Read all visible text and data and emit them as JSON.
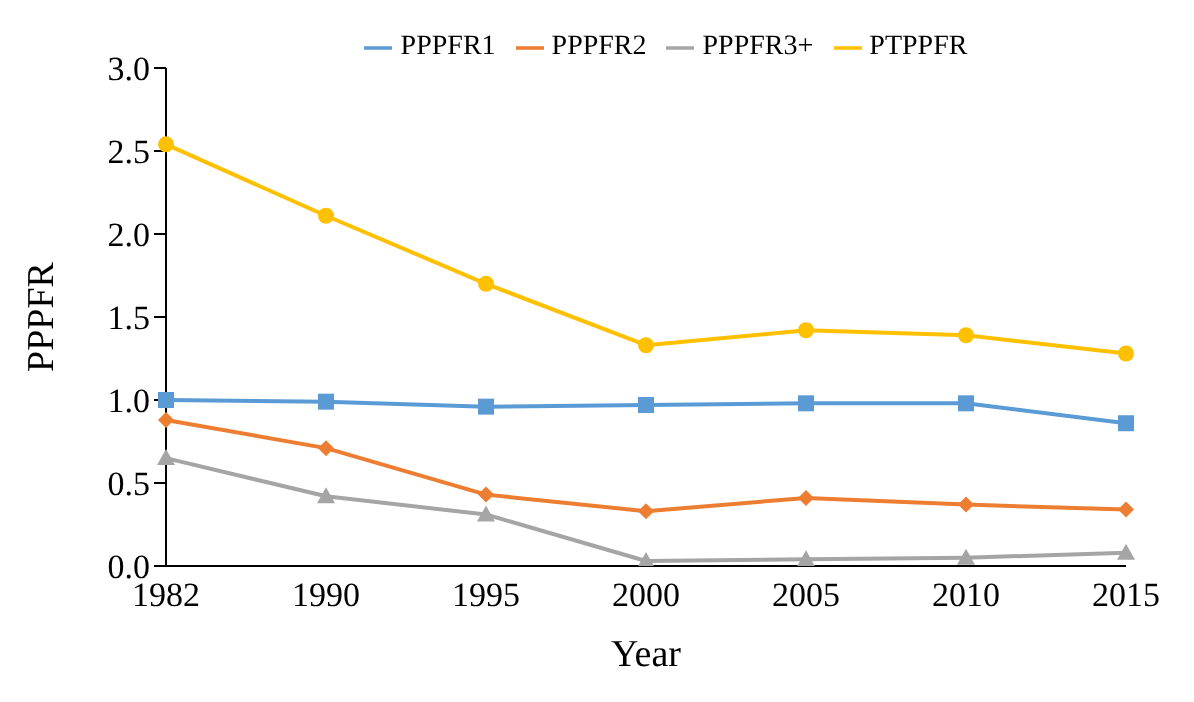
{
  "chart_data": {
    "type": "line",
    "xlabel": "Year",
    "ylabel": "PPPFR",
    "categories": [
      "1982",
      "1990",
      "1995",
      "2000",
      "2005",
      "2010",
      "2015"
    ],
    "ylim": [
      0,
      3
    ],
    "yticks": [
      {
        "value": 0,
        "label": "0.0"
      },
      {
        "value": 0.5,
        "label": "0.5"
      },
      {
        "value": 1,
        "label": "1.0"
      },
      {
        "value": 1.5,
        "label": "1.5"
      },
      {
        "value": 2,
        "label": "2.0"
      },
      {
        "value": 2.5,
        "label": "2.5"
      },
      {
        "value": 3,
        "label": "3.0"
      }
    ],
    "grid": false,
    "legend": "top",
    "line_style": "solid",
    "series": [
      {
        "name": "PPPFR1",
        "color": "#5b9bd5",
        "marker": "square",
        "values": [
          1.0,
          0.99,
          0.96,
          0.97,
          0.98,
          0.98,
          0.86
        ]
      },
      {
        "name": "PPPFR2",
        "color": "#ed7d31",
        "marker": "diamond",
        "values": [
          0.88,
          0.71,
          0.43,
          0.33,
          0.41,
          0.37,
          0.34
        ]
      },
      {
        "name": "PPPFR3+",
        "color": "#a5a5a5",
        "marker": "triangle",
        "values": [
          0.65,
          0.42,
          0.31,
          0.03,
          0.04,
          0.05,
          0.08
        ]
      },
      {
        "name": "PTPPFR",
        "color": "#ffc000",
        "marker": "circle",
        "values": [
          2.54,
          2.11,
          1.7,
          1.33,
          1.42,
          1.39,
          1.28
        ]
      }
    ]
  }
}
